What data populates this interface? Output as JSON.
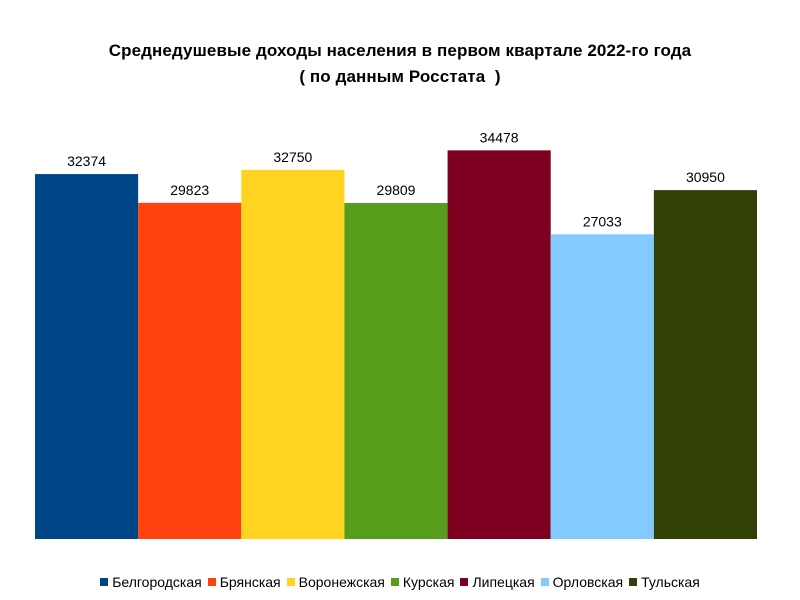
{
  "chart_data": {
    "type": "bar",
    "title": "Среднедушевые доходы населения в первом квартале 2022-го года",
    "subtitle": "( по данным Росстата  )",
    "categories": [
      "Белгородская",
      "Брянская",
      "Воронежская",
      "Курская",
      "Липецкая",
      "Орловская",
      "Тульская"
    ],
    "values": [
      32374,
      29823,
      32750,
      29809,
      34478,
      27033,
      30950
    ],
    "colors": [
      "#004586",
      "#ff420e",
      "#ffd320",
      "#579d1c",
      "#7e0021",
      "#83caff",
      "#314004"
    ],
    "ylim": [
      0,
      50000
    ],
    "grid": false,
    "legend_position": "bottom",
    "data_labels": true
  }
}
